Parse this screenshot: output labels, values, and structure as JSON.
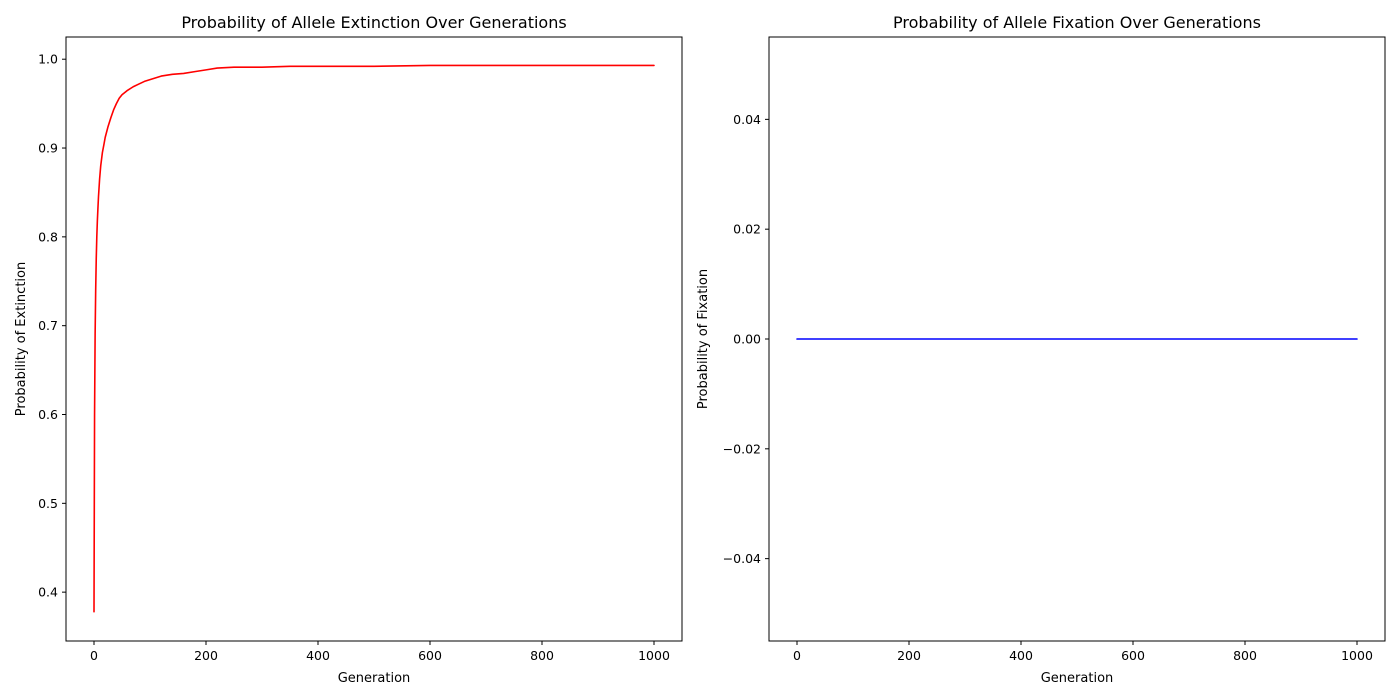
{
  "chart_data": [
    {
      "type": "line",
      "title": "Probability of Allele Extinction Over Generations",
      "xlabel": "Generation",
      "ylabel": "Probability of Extinction",
      "xlim": [
        -50,
        1050
      ],
      "ylim": [
        0.345,
        1.025
      ],
      "xticks": [
        0,
        200,
        400,
        600,
        800,
        1000
      ],
      "xtick_labels": [
        "0",
        "200",
        "400",
        "600",
        "800",
        "1000"
      ],
      "yticks": [
        0.4,
        0.5,
        0.6,
        0.7,
        0.8,
        0.9,
        1.0
      ],
      "ytick_labels": [
        "0.4",
        "0.5",
        "0.6",
        "0.7",
        "0.8",
        "0.9",
        "1.0"
      ],
      "grid": false,
      "series": [
        {
          "color": "#ff0000",
          "x": [
            0,
            1,
            2,
            3,
            4,
            5,
            6,
            7,
            8,
            10,
            12,
            15,
            18,
            20,
            25,
            30,
            35,
            40,
            45,
            50,
            60,
            70,
            80,
            90,
            100,
            120,
            140,
            160,
            180,
            200,
            220,
            250,
            300,
            350,
            400,
            500,
            600,
            700,
            800,
            900,
            1000
          ],
          "y": [
            0.378,
            0.6,
            0.69,
            0.74,
            0.775,
            0.8,
            0.818,
            0.832,
            0.845,
            0.865,
            0.88,
            0.895,
            0.905,
            0.912,
            0.924,
            0.934,
            0.943,
            0.95,
            0.956,
            0.96,
            0.965,
            0.969,
            0.972,
            0.975,
            0.977,
            0.981,
            0.983,
            0.984,
            0.986,
            0.988,
            0.99,
            0.991,
            0.991,
            0.992,
            0.992,
            0.992,
            0.993,
            0.993,
            0.993,
            0.993,
            0.993
          ]
        }
      ]
    },
    {
      "type": "line",
      "title": "Probability of Allele Fixation Over Generations",
      "xlabel": "Generation",
      "ylabel": "Probability of Fixation",
      "xlim": [
        -50,
        1050
      ],
      "ylim": [
        -0.055,
        0.055
      ],
      "xticks": [
        0,
        200,
        400,
        600,
        800,
        1000
      ],
      "xtick_labels": [
        "0",
        "200",
        "400",
        "600",
        "800",
        "1000"
      ],
      "yticks": [
        -0.04,
        -0.02,
        0.0,
        0.02,
        0.04
      ],
      "ytick_labels": [
        "−0.04",
        "−0.02",
        "0.00",
        "0.02",
        "0.04"
      ],
      "grid": false,
      "series": [
        {
          "color": "#0000ff",
          "x": [
            0,
            1000
          ],
          "y": [
            0.0,
            0.0
          ]
        }
      ]
    }
  ]
}
